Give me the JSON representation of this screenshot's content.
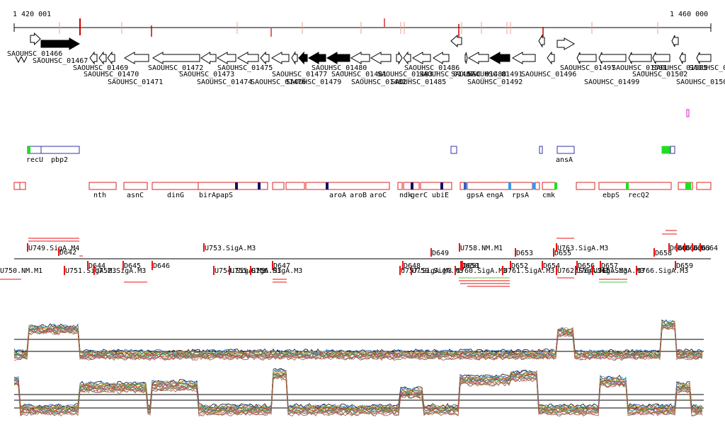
{
  "axis": {
    "start_label": "1 420 001",
    "end_label": "1 460 000",
    "marker_color": "#cc0000",
    "minor_marker_color": "#e8a090"
  },
  "genes": [
    {
      "label": "SAOUHSC_01466",
      "strand": "+",
      "filled": false
    },
    {
      "label": "SAOUHSC_01467",
      "strand": "+",
      "filled": true
    },
    {
      "label": "SAOUHSC_01469",
      "strand": "-",
      "filled": false
    },
    {
      "label": "SAOUHSC_01470",
      "strand": "-",
      "filled": false
    },
    {
      "label": "SAOUHSC_01471",
      "strand": "-",
      "filled": false
    },
    {
      "label": "SAOUHSC_01472",
      "strand": "-",
      "filled": false
    },
    {
      "label": "SAOUHSC_01473",
      "strand": "-",
      "filled": false
    },
    {
      "label": "SAOUHSC_01474",
      "strand": "-",
      "filled": false
    },
    {
      "label": "SAOUHSC_01475",
      "strand": "-",
      "filled": false
    },
    {
      "label": "SAOUHSC_01476",
      "strand": "-",
      "filled": false
    },
    {
      "label": "SAOUHSC_01477",
      "strand": "-",
      "filled": false
    },
    {
      "label": "SAOUHSC_01479",
      "strand": "-",
      "filled": false
    },
    {
      "label": "SAOUHSC_01480",
      "strand": "-",
      "filled": false
    },
    {
      "label": "SAOUHSC_01481",
      "strand": "-",
      "filled": true
    },
    {
      "label": "SAOUHSC_01482",
      "strand": "-",
      "filled": true
    },
    {
      "label": "SAOUHSC_01483",
      "strand": "-",
      "filled": true
    },
    {
      "label": "SAOUHSC_01485",
      "strand": "-",
      "filled": false
    },
    {
      "label": "SAOUHSC_01486",
      "strand": "-",
      "filled": false
    },
    {
      "label": "SAOUHSC_01487",
      "strand": "+",
      "filled": false
    },
    {
      "label": "SAOUHSC_01488",
      "strand": "-",
      "filled": false
    },
    {
      "label": "SAOUHSC_01491",
      "strand": "-",
      "filled": false
    },
    {
      "label": "SAOUHSC_01492",
      "strand": "-",
      "filled": false
    },
    {
      "label": "SAOUHSC_01496",
      "strand": "-",
      "filled": false
    },
    {
      "label": "SAOUHSC_01497",
      "strand": "+",
      "filled": false
    },
    {
      "label": "SAOUHSC_01499",
      "strand": "-",
      "filled": false
    },
    {
      "label": "SAOUHSC_01501",
      "strand": "-",
      "filled": true
    },
    {
      "label": "SAOUHSC_01502",
      "strand": "-",
      "filled": false
    },
    {
      "label": "SAOUHSC_01503",
      "strand": "-",
      "filled": false
    },
    {
      "label": "SAOUHSC_01505",
      "strand": "-",
      "filled": false
    },
    {
      "label": "SAOUHSC_0150",
      "strand": "+",
      "filled": false
    }
  ],
  "blue_track": {
    "labels": [
      "recU",
      "pbp2",
      "ansA"
    ],
    "color": "#3333aa",
    "green": "#22dd22",
    "magenta": "#cc22cc"
  },
  "red_track": {
    "labels": [
      "nth",
      "asnC",
      "dinG",
      "birA",
      "papS",
      "aroA",
      "aroB",
      "aroC",
      "ndk",
      "gerC",
      "ubiE",
      "gpsA",
      "engA",
      "rpsA",
      "cmk",
      "ebpS",
      "recQ2"
    ],
    "color": "#dd2222"
  },
  "features": {
    "above": [
      "U749.SigA.M4",
      "D642",
      "U753.SigA.M3",
      "D649",
      "U758.NM.M1",
      "D653",
      "D655",
      "U763.SigA.M3",
      "D658",
      "D660",
      "D661",
      "D662",
      "D663",
      "D664"
    ],
    "below": [
      "U750.NM.M1",
      "U751.SigA.M3",
      "U752.SigA.M3",
      "D644",
      "D645",
      "D646",
      "U754.SigA.M3",
      "U755.SigA.M3",
      "U756.SigA.M3",
      "D647",
      "D648",
      "U757.SigA.M3",
      "U759.SigA.M3",
      "U760.SigA.M3",
      "D650",
      "D651",
      "D652",
      "U761.SigA.M3",
      "U762.SigA.M3",
      "D654",
      "D656",
      "D657",
      "U764.SigA.M3",
      "U765.SigA.M3",
      "U766.SigA.M3",
      "D659"
    ],
    "color": "#ee1111",
    "line_green": "#44cc44"
  },
  "expression": {
    "palette": [
      "#000000",
      "#1f4fa8",
      "#5aa0e0",
      "#e07b2a",
      "#d4a019",
      "#2f9e44",
      "#7a5c2e",
      "#c0392b",
      "#8e44ad",
      "#16a085",
      "#b5651d",
      "#6d8f2a",
      "#e75480",
      "#7f7f7f",
      "#a0522d"
    ]
  }
}
